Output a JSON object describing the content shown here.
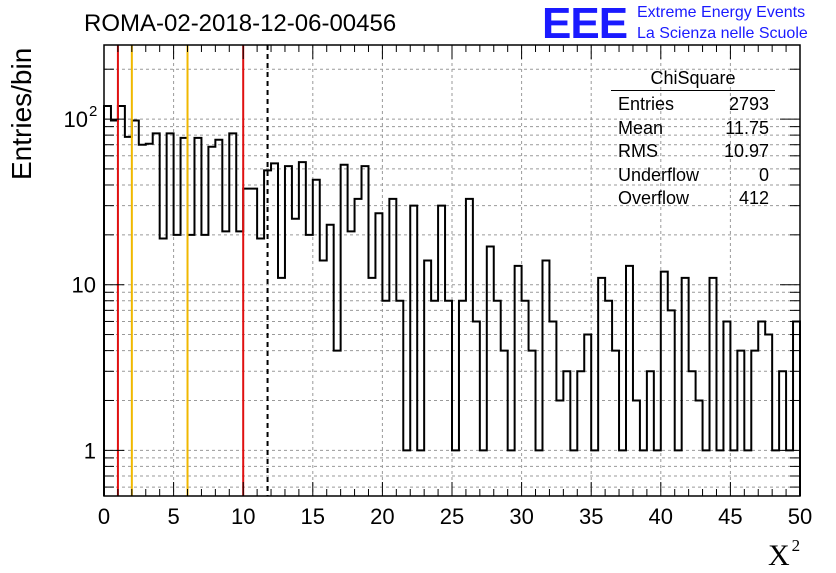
{
  "title": "ROMA-02-2018-12-06-00456",
  "logo": {
    "mark": "EEE",
    "line1": "Extreme Energy Events",
    "line2": "La Scienza nelle Scuole"
  },
  "stats_box": {
    "title": "ChiSquare",
    "rows": [
      {
        "label": "Entries",
        "value": "2793"
      },
      {
        "label": "Mean",
        "value": "11.75"
      },
      {
        "label": "RMS",
        "value": "10.97"
      },
      {
        "label": "Underflow",
        "value": "0"
      },
      {
        "label": "Overflow",
        "value": "412"
      }
    ]
  },
  "colors": {
    "red_line": "#e01010",
    "yellow_line": "#f0b800",
    "histogram": "#000000",
    "grid": "#9a9a9a",
    "logo": "#1a1aff"
  },
  "chart_data": {
    "type": "bar",
    "histogram_style": "step",
    "title": "ROMA-02-2018-12-06-00456",
    "xlabel": "X",
    "xlabel_superscript": "2",
    "ylabel": "Entries/bin",
    "xlim": [
      0,
      50
    ],
    "ylim": [
      0.53,
      280
    ],
    "y_scale": "log",
    "grid": true,
    "bin_width": 0.5,
    "x_ticks": [
      0,
      5,
      10,
      15,
      20,
      25,
      30,
      35,
      40,
      45,
      50
    ],
    "y_ticks": [
      {
        "value": 1,
        "label": "1"
      },
      {
        "value": 10,
        "label": "10"
      },
      {
        "value": 100,
        "label": "10",
        "exponent": "2"
      }
    ],
    "values": [
      120,
      98,
      120,
      78,
      98,
      70,
      71,
      82,
      19,
      82,
      20,
      77,
      20,
      77,
      20,
      68,
      75,
      21,
      82,
      21,
      38,
      38,
      19,
      49,
      54,
      11,
      52,
      25,
      55,
      20,
      43,
      14,
      23,
      4,
      53,
      21,
      33,
      52,
      11,
      27,
      8,
      33,
      8,
      1,
      30,
      1,
      14,
      8,
      30,
      8,
      1,
      8,
      33,
      6,
      1,
      17,
      8,
      4,
      1,
      13,
      8,
      4,
      1,
      14,
      6,
      2,
      3,
      1,
      3,
      5,
      1,
      11,
      8,
      4,
      1,
      13,
      2,
      1,
      3,
      1,
      12,
      7,
      1,
      11,
      3,
      2,
      1,
      11,
      1,
      6,
      1,
      4,
      1,
      4,
      6,
      5,
      1,
      3,
      1,
      6
    ],
    "vertical_lines": [
      {
        "x": 1.0,
        "color": "red",
        "style": "solid"
      },
      {
        "x": 2.0,
        "color": "yellow",
        "style": "solid"
      },
      {
        "x": 6.0,
        "color": "yellow",
        "style": "solid"
      },
      {
        "x": 10.0,
        "color": "red",
        "style": "solid"
      },
      {
        "x": 11.75,
        "color": "black",
        "style": "dashed"
      }
    ]
  }
}
